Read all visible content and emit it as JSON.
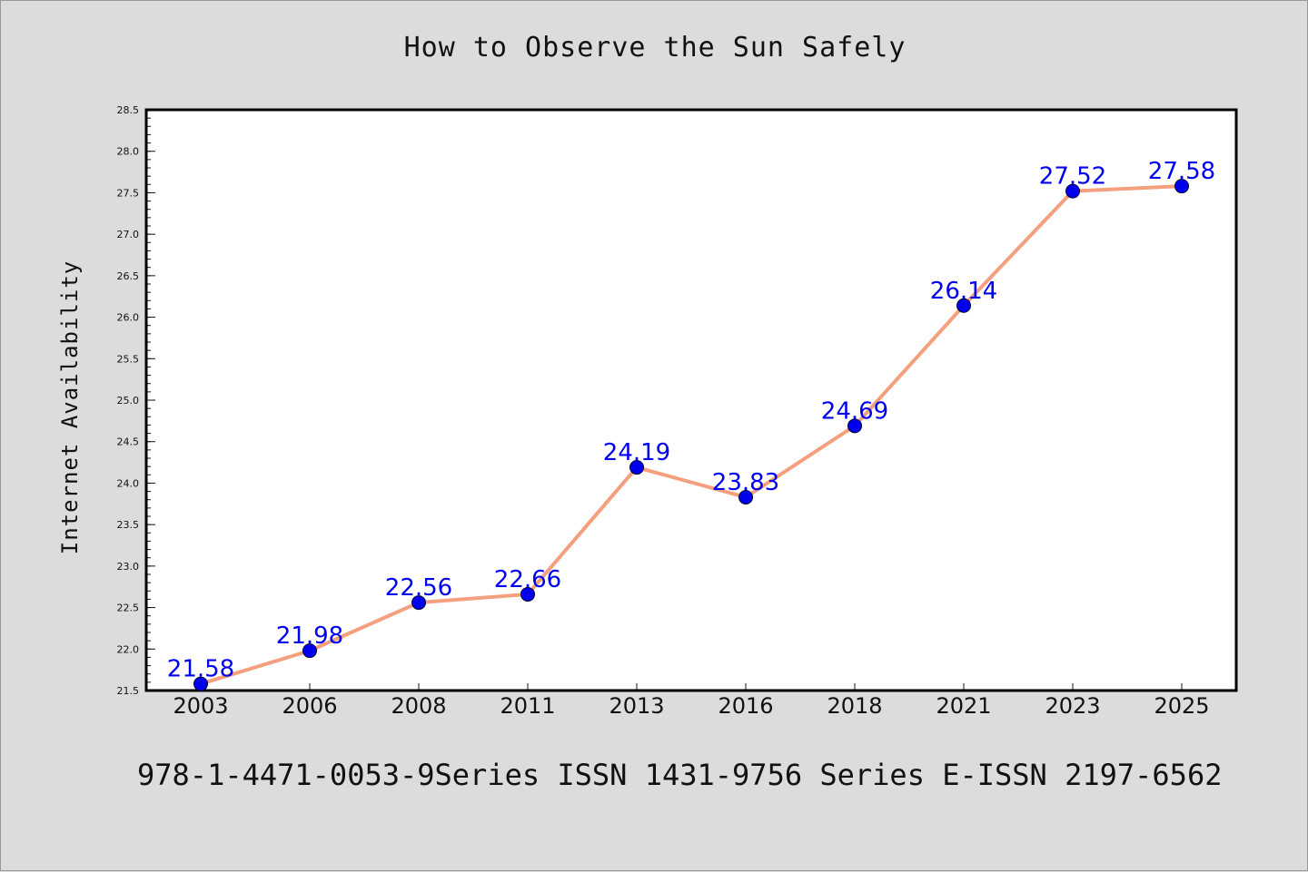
{
  "title": "How to Observe the Sun Safely",
  "footer_note": "978-1-4471-0053-9Series ISSN 1431-9756 Series E-ISSN 2197-6562",
  "colors": {
    "background": "#dcdcdc",
    "plot_background": "#ffffff",
    "line": "#f4a07e",
    "marker": "#0000ee",
    "label": "#0000ee"
  },
  "chart_data": {
    "type": "line",
    "title": "How to Observe the Sun Safely",
    "xlabel": "",
    "ylabel": "Internet Availability",
    "categories": [
      "2003",
      "2006",
      "2008",
      "2011",
      "2013",
      "2016",
      "2018",
      "2021",
      "2023",
      "2025"
    ],
    "series": [
      {
        "values": [
          21.58,
          21.98,
          22.56,
          22.66,
          24.19,
          23.83,
          24.69,
          26.14,
          27.52,
          27.58
        ]
      }
    ],
    "data_labels": [
      "21.58",
      "21.98",
      "22.56",
      "22.66",
      "24.19",
      "23.83",
      "24.69",
      "26.14",
      "27.52",
      "27.58"
    ],
    "ylim": [
      21.5,
      28.5
    ],
    "yticks": [
      "21.5",
      "22.0",
      "22.5",
      "23.0",
      "23.5",
      "24.0",
      "24.5",
      "25.0",
      "25.5",
      "26.0",
      "26.5",
      "27.0",
      "27.5",
      "28.0",
      "28.5"
    ],
    "grid": false,
    "legend": "none"
  }
}
